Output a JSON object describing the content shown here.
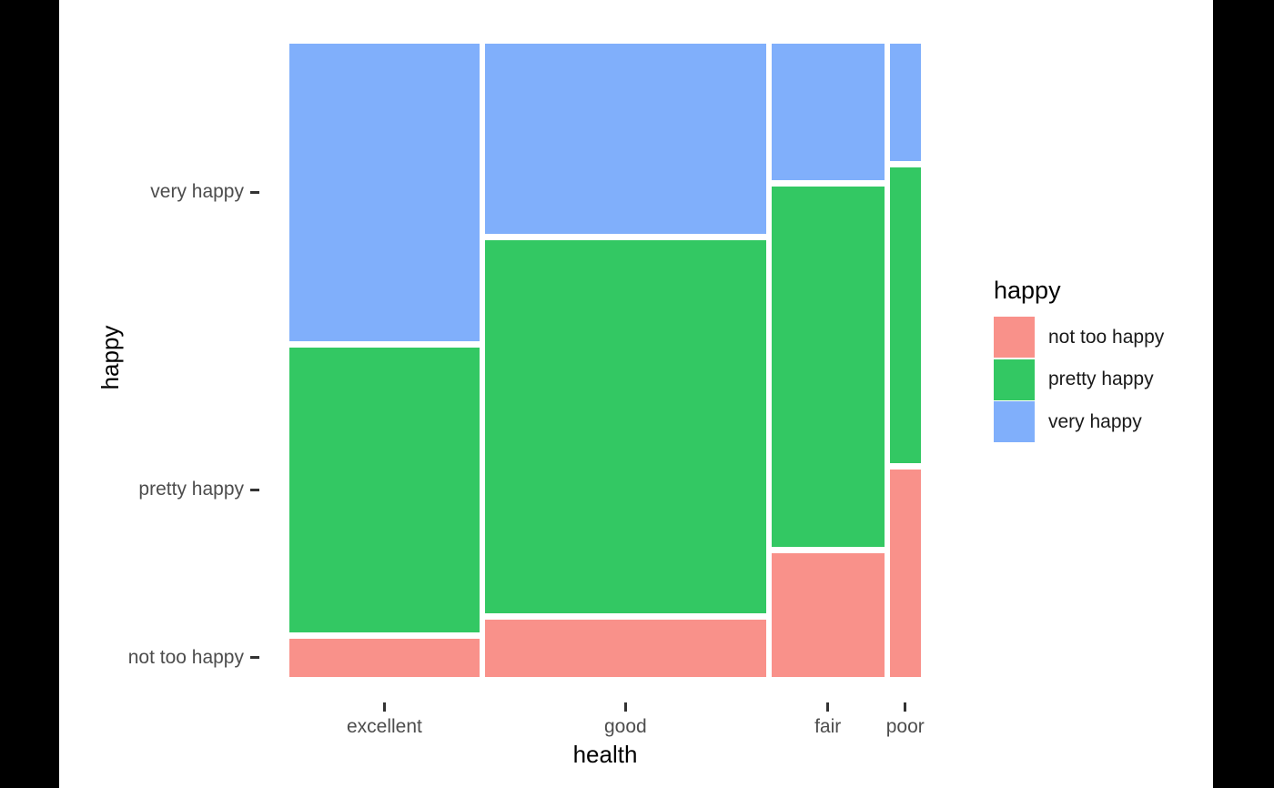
{
  "legend": {
    "title": "happy",
    "items": [
      {
        "label": "not too happy",
        "color": "#F9918A"
      },
      {
        "label": "pretty happy",
        "color": "#33C863"
      },
      {
        "label": "very happy",
        "color": "#80AFFB"
      }
    ]
  },
  "chart_data": {
    "type": "mosaic",
    "title": "",
    "xlabel": "health",
    "ylabel": "happy",
    "legend_title": "happy",
    "legend_position": "right",
    "grid": "off",
    "background": "#ffffff",
    "x_categories": [
      "excellent",
      "good",
      "fair",
      "poor"
    ],
    "y_categories_top_to_bottom": [
      "very happy",
      "pretty happy",
      "not too happy"
    ],
    "colors": {
      "not too happy": "#F9918A",
      "pretty happy": "#33C863",
      "very happy": "#80AFFB"
    },
    "x_marginal_proportions": {
      "excellent": 0.309,
      "good": 0.457,
      "fair": 0.183,
      "poor": 0.051
    },
    "conditional_proportions_by_health": {
      "excellent": {
        "very happy": 0.479,
        "pretty happy": 0.459,
        "not too happy": 0.062
      },
      "good": {
        "very happy": 0.307,
        "pretty happy": 0.6,
        "not too happy": 0.093
      },
      "fair": {
        "very happy": 0.22,
        "pretty happy": 0.581,
        "not too happy": 0.199
      },
      "poor": {
        "very happy": 0.189,
        "pretty happy": 0.477,
        "not too happy": 0.334
      }
    }
  }
}
